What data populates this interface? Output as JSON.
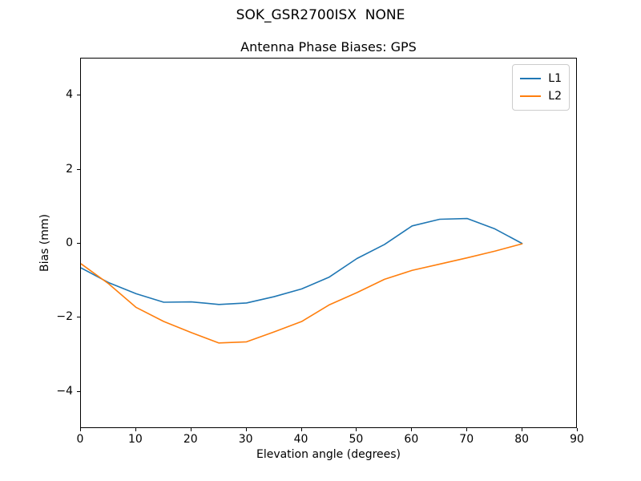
{
  "figure": {
    "suptitle": "SOK_GSR2700ISX  NONE"
  },
  "chart_data": {
    "type": "line",
    "suptitle": "SOK_GSR2700ISX  NONE",
    "title": "Antenna Phase Biases: GPS",
    "xlabel": "Elevation angle (degrees)",
    "ylabel": "Bias (mm)",
    "xlim": [
      0,
      90
    ],
    "ylim": [
      -5,
      5
    ],
    "x_ticks": [
      0,
      10,
      20,
      30,
      40,
      50,
      60,
      70,
      80,
      90
    ],
    "y_ticks": [
      -4,
      -2,
      0,
      2,
      4
    ],
    "grid": false,
    "legend_position": "upper right",
    "x": [
      0,
      5,
      10,
      15,
      20,
      25,
      30,
      35,
      40,
      45,
      50,
      55,
      60,
      65,
      70,
      75,
      80
    ],
    "series": [
      {
        "name": "L1",
        "color": "#1f77b4",
        "values": [
          -0.65,
          -1.05,
          -1.35,
          -1.58,
          -1.57,
          -1.64,
          -1.6,
          -1.43,
          -1.22,
          -0.9,
          -0.4,
          -0.02,
          0.48,
          0.66,
          0.68,
          0.4,
          0.0
        ]
      },
      {
        "name": "L2",
        "color": "#ff7f0e",
        "values": [
          -0.54,
          -1.08,
          -1.72,
          -2.1,
          -2.4,
          -2.68,
          -2.65,
          -2.38,
          -2.1,
          -1.65,
          -1.32,
          -0.96,
          -0.72,
          -0.55,
          -0.38,
          -0.2,
          0.0
        ]
      }
    ]
  }
}
